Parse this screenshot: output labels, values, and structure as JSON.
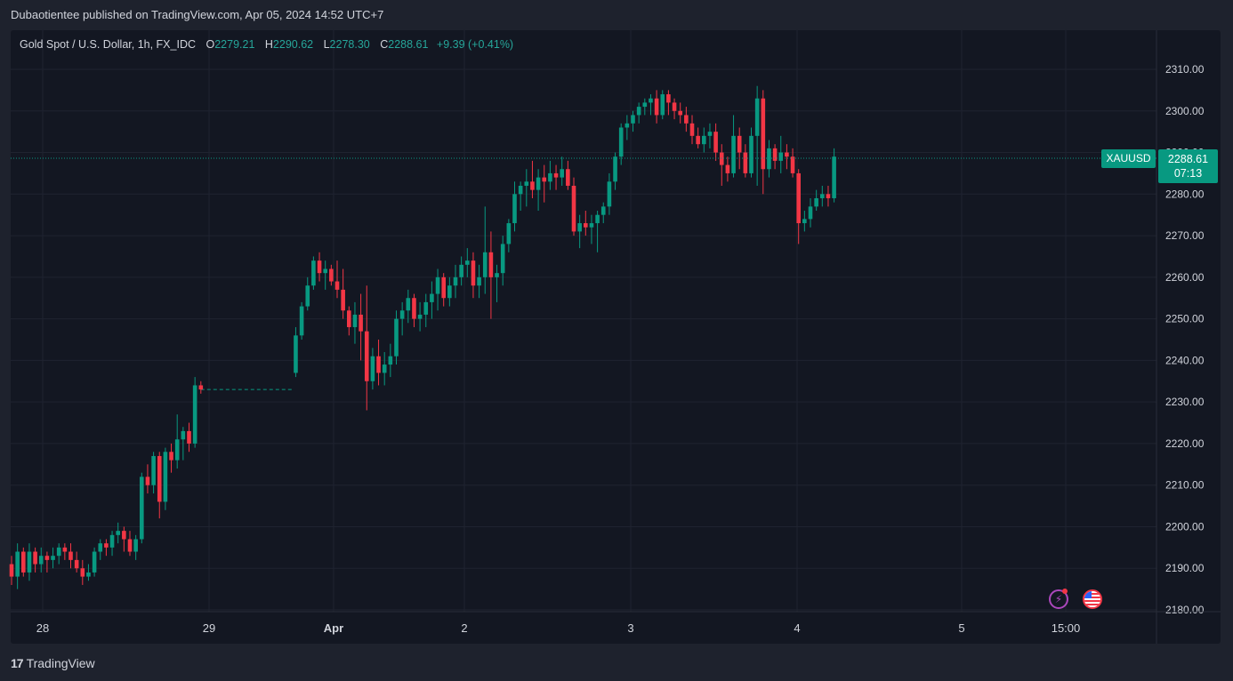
{
  "header": {
    "publisher_text": "Dubaotientee published on TradingView.com, Apr 05, 2024 14:52 UTC+7"
  },
  "legend": {
    "symbol_text": "Gold Spot / U.S. Dollar, 1h, FX_IDC",
    "o_label": "O",
    "o_value": "2279.21",
    "h_label": "H",
    "h_value": "2290.62",
    "l_label": "L",
    "l_value": "2278.30",
    "c_label": "C",
    "c_value": "2288.61",
    "change": "+9.39 (+0.41%)"
  },
  "price_tag": {
    "symbol": "XAUUSD",
    "price": "2288.61",
    "countdown": "07:13"
  },
  "footer": {
    "brand": "TradingView",
    "logo_mark": "17"
  },
  "icons": {
    "flash": "lightning-icon",
    "flag": "us-flag-icon"
  },
  "colors": {
    "up": "#089981",
    "down": "#f23645",
    "bg": "#131722",
    "grid": "#1f2330",
    "text": "#d1d4dc",
    "price_line": "#089981",
    "event_flash": "#ab47bc"
  },
  "chart_data": {
    "type": "candlestick",
    "symbol": "XAUUSD",
    "timeframe": "1h",
    "y_range": [
      2180,
      2310
    ],
    "y_ticks": [
      "2310.00",
      "2300.00",
      "2290.00",
      "2280.00",
      "2270.00",
      "2260.00",
      "2250.00",
      "2240.00",
      "2230.00",
      "2220.00",
      "2210.00",
      "2200.00",
      "2190.00",
      "2180.00"
    ],
    "x_ticks": [
      "28",
      "29",
      "Apr",
      "2",
      "3",
      "4",
      "5",
      "15:00"
    ],
    "last_price": 2288.61,
    "candles": [
      [
        2191,
        2193,
        2186,
        2188
      ],
      [
        2188,
        2196,
        2185,
        2194
      ],
      [
        2194,
        2195,
        2188,
        2189
      ],
      [
        2189,
        2196,
        2187,
        2194
      ],
      [
        2194,
        2195,
        2189,
        2191
      ],
      [
        2191,
        2195,
        2189,
        2193
      ],
      [
        2193,
        2194,
        2189,
        2192
      ],
      [
        2192,
        2195,
        2190,
        2193
      ],
      [
        2193,
        2196,
        2191,
        2195
      ],
      [
        2195,
        2196,
        2192,
        2194
      ],
      [
        2194,
        2196,
        2190,
        2192
      ],
      [
        2192,
        2194,
        2189,
        2190
      ],
      [
        2190,
        2192,
        2186,
        2188
      ],
      [
        2188,
        2191,
        2187,
        2189
      ],
      [
        2189,
        2195,
        2188,
        2194
      ],
      [
        2194,
        2197,
        2192,
        2196
      ],
      [
        2196,
        2197,
        2193,
        2195
      ],
      [
        2195,
        2199,
        2193,
        2198
      ],
      [
        2198,
        2201,
        2196,
        2199
      ],
      [
        2199,
        2200,
        2194,
        2197
      ],
      [
        2197,
        2199,
        2193,
        2194
      ],
      [
        2194,
        2198,
        2192,
        2197
      ],
      [
        2197,
        2213,
        2196,
        2212
      ],
      [
        2212,
        2215,
        2208,
        2210
      ],
      [
        2210,
        2218,
        2208,
        2217
      ],
      [
        2217,
        2218,
        2202,
        2206
      ],
      [
        2206,
        2219,
        2204,
        2218
      ],
      [
        2218,
        2220,
        2213,
        2216
      ],
      [
        2216,
        2227,
        2214,
        2221
      ],
      [
        2221,
        2224,
        2216,
        2223
      ],
      [
        2223,
        2225,
        2218,
        2220
      ],
      [
        2220,
        2236,
        2219,
        2234
      ],
      [
        2234,
        2235,
        2232,
        2233
      ],
      [
        2237,
        2248,
        2236,
        2246
      ],
      [
        2246,
        2254,
        2245,
        2253
      ],
      [
        2253,
        2260,
        2252,
        2258
      ],
      [
        2258,
        2265,
        2257,
        2264
      ],
      [
        2264,
        2266,
        2259,
        2261
      ],
      [
        2261,
        2264,
        2257,
        2262
      ],
      [
        2262,
        2263,
        2258,
        2259
      ],
      [
        2259,
        2264,
        2255,
        2257
      ],
      [
        2257,
        2262,
        2250,
        2252
      ],
      [
        2252,
        2253,
        2246,
        2248
      ],
      [
        2248,
        2254,
        2244,
        2251
      ],
      [
        2251,
        2256,
        2240,
        2247
      ],
      [
        2247,
        2258,
        2228,
        2235
      ],
      [
        2235,
        2243,
        2233,
        2241
      ],
      [
        2241,
        2245,
        2234,
        2237
      ],
      [
        2237,
        2242,
        2234,
        2239
      ],
      [
        2239,
        2244,
        2236,
        2241
      ],
      [
        2241,
        2252,
        2239,
        2250
      ],
      [
        2250,
        2254,
        2246,
        2252
      ],
      [
        2252,
        2257,
        2249,
        2255
      ],
      [
        2255,
        2256,
        2248,
        2250
      ],
      [
        2250,
        2254,
        2247,
        2251
      ],
      [
        2251,
        2256,
        2248,
        2254
      ],
      [
        2254,
        2259,
        2250,
        2256
      ],
      [
        2256,
        2262,
        2252,
        2260
      ],
      [
        2260,
        2261,
        2253,
        2255
      ],
      [
        2255,
        2260,
        2253,
        2258
      ],
      [
        2258,
        2263,
        2255,
        2260
      ],
      [
        2260,
        2265,
        2258,
        2263
      ],
      [
        2263,
        2267,
        2260,
        2264
      ],
      [
        2264,
        2266,
        2255,
        2258
      ],
      [
        2258,
        2263,
        2255,
        2260
      ],
      [
        2260,
        2277,
        2256,
        2266
      ],
      [
        2266,
        2271,
        2250,
        2260
      ],
      [
        2260,
        2263,
        2254,
        2261
      ],
      [
        2261,
        2270,
        2258,
        2268
      ],
      [
        2268,
        2274,
        2266,
        2273
      ],
      [
        2273,
        2283,
        2271,
        2280
      ],
      [
        2280,
        2283,
        2276,
        2282
      ],
      [
        2282,
        2286,
        2277,
        2283
      ],
      [
        2283,
        2288,
        2279,
        2281
      ],
      [
        2281,
        2286,
        2276,
        2284
      ],
      [
        2284,
        2287,
        2278,
        2283
      ],
      [
        2283,
        2288,
        2281,
        2285
      ],
      [
        2285,
        2287,
        2281,
        2284
      ],
      [
        2284,
        2289,
        2282,
        2286
      ],
      [
        2286,
        2288,
        2281,
        2282
      ],
      [
        2282,
        2284,
        2270,
        2271
      ],
      [
        2271,
        2275,
        2267,
        2273
      ],
      [
        2273,
        2276,
        2270,
        2272
      ],
      [
        2272,
        2275,
        2268,
        2273
      ],
      [
        2273,
        2276,
        2266,
        2275
      ],
      [
        2275,
        2278,
        2273,
        2277
      ],
      [
        2277,
        2285,
        2275,
        2283
      ],
      [
        2283,
        2290,
        2281,
        2289
      ],
      [
        2289,
        2297,
        2287,
        2296
      ],
      [
        2296,
        2299,
        2293,
        2297
      ],
      [
        2297,
        2300,
        2295,
        2299
      ],
      [
        2299,
        2302,
        2297,
        2301
      ],
      [
        2301,
        2303,
        2299,
        2302
      ],
      [
        2302,
        2304,
        2299,
        2303
      ],
      [
        2303,
        2305,
        2297,
        2299
      ],
      [
        2299,
        2305,
        2298,
        2304
      ],
      [
        2304,
        2305,
        2299,
        2302
      ],
      [
        2302,
        2303,
        2298,
        2300
      ],
      [
        2300,
        2302,
        2297,
        2299
      ],
      [
        2299,
        2301,
        2295,
        2297
      ],
      [
        2297,
        2299,
        2292,
        2294
      ],
      [
        2294,
        2296,
        2291,
        2292
      ],
      [
        2292,
        2296,
        2290,
        2294
      ],
      [
        2294,
        2297,
        2291,
        2295
      ],
      [
        2295,
        2297,
        2288,
        2290
      ],
      [
        2290,
        2292,
        2282,
        2287
      ],
      [
        2287,
        2289,
        2283,
        2285
      ],
      [
        2285,
        2299,
        2284,
        2294
      ],
      [
        2294,
        2296,
        2286,
        2290
      ],
      [
        2290,
        2292,
        2284,
        2285
      ],
      [
        2285,
        2296,
        2284,
        2294
      ],
      [
        2294,
        2306,
        2282,
        2303
      ],
      [
        2303,
        2305,
        2280,
        2286
      ],
      [
        2286,
        2293,
        2284,
        2291
      ],
      [
        2291,
        2292,
        2286,
        2288
      ],
      [
        2288,
        2294,
        2285,
        2290
      ],
      [
        2290,
        2292,
        2286,
        2289
      ],
      [
        2289,
        2291,
        2284,
        2285
      ],
      [
        2285,
        2286,
        2268,
        2273
      ],
      [
        2273,
        2276,
        2271,
        2274
      ],
      [
        2274,
        2279,
        2272,
        2277
      ],
      [
        2277,
        2281,
        2276,
        2279
      ],
      [
        2279,
        2282,
        2277,
        2280
      ],
      [
        2280,
        2282,
        2277,
        2279
      ],
      [
        2279,
        2291,
        2278,
        2289
      ]
    ],
    "gap_after_index": 32
  }
}
